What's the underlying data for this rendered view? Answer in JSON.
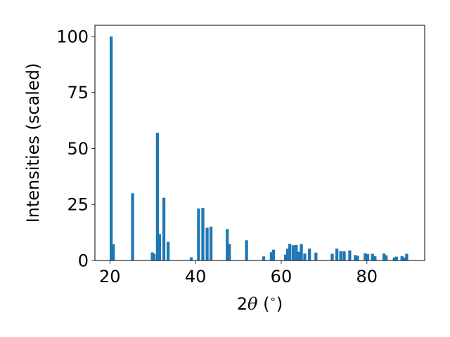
{
  "chart_data": {
    "type": "bar",
    "xlabel": "2θ (°)",
    "xlabel_parts": {
      "prefix": "2",
      "symbol": "θ",
      "suffix": " (",
      "unit": "∘",
      "close": ")"
    },
    "ylabel": "Intensities (scaled)",
    "xlim": [
      16.5,
      93.5
    ],
    "ylim": [
      0,
      105
    ],
    "xticks": [
      20,
      40,
      60,
      80
    ],
    "yticks": [
      0,
      25,
      50,
      75,
      100
    ],
    "grid": false,
    "legend": "none",
    "bar_color": "#1f77b4",
    "bar_width": 0.7,
    "x": [
      20.3,
      20.8,
      25.3,
      29.9,
      30.3,
      31.1,
      31.6,
      32.6,
      33.6,
      39.0,
      40.7,
      41.7,
      42.7,
      43.6,
      47.4,
      47.9,
      51.9,
      55.9,
      57.7,
      58.2,
      61.0,
      61.5,
      62.0,
      62.8,
      63.5,
      64.1,
      64.7,
      65.5,
      66.6,
      68.1,
      71.9,
      73.0,
      73.9,
      74.7,
      76.0,
      77.3,
      77.8,
      79.6,
      80.2,
      81.3,
      81.9,
      84.0,
      84.5,
      86.4,
      86.9,
      88.2,
      88.8,
      89.3
    ],
    "values": [
      100,
      7.2,
      30,
      3.6,
      3.0,
      57,
      11.8,
      28,
      8.3,
      1.4,
      23.2,
      23.5,
      14.6,
      15.1,
      14.0,
      7.3,
      9.0,
      1.8,
      3.7,
      4.8,
      2.6,
      5.3,
      7.4,
      6.8,
      6.9,
      3.9,
      7.3,
      3.1,
      5.3,
      3.5,
      3.0,
      5.3,
      4.2,
      4.1,
      4.5,
      2.4,
      2.1,
      3.2,
      2.8,
      3.0,
      1.9,
      3.1,
      2.3,
      1.3,
      1.7,
      1.9,
      1.3,
      3.0
    ]
  }
}
